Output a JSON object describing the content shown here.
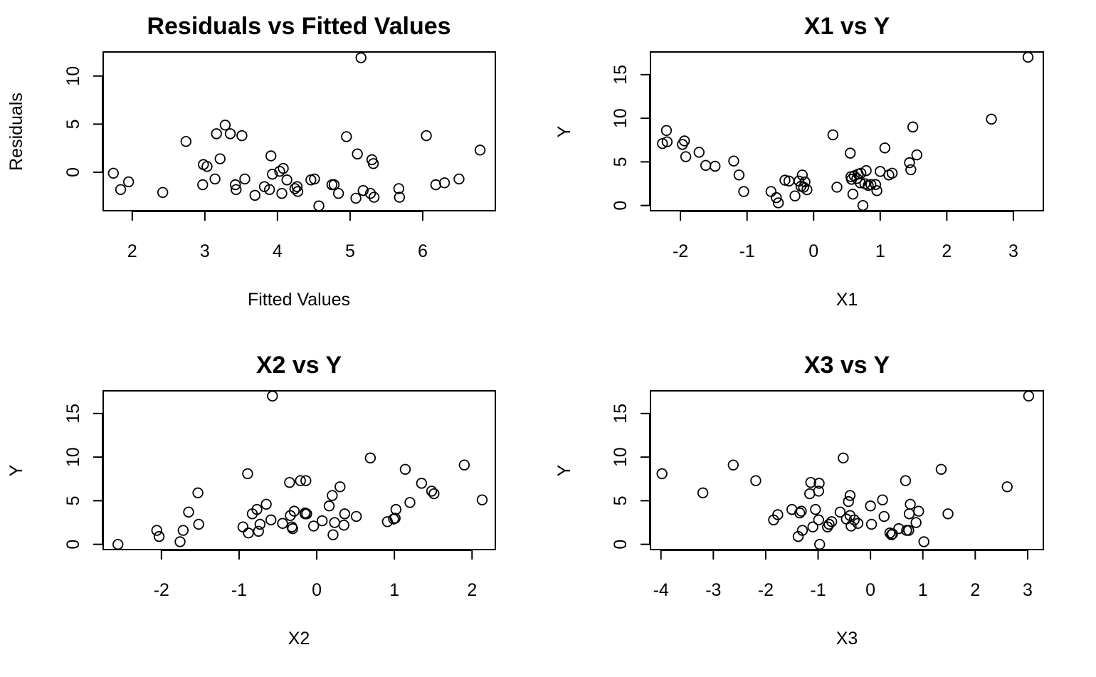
{
  "chart_data": [
    {
      "type": "scatter",
      "title": "Residuals vs Fitted Values",
      "xlabel": "Fitted Values",
      "ylabel": "Residuals",
      "xlim": [
        1.6,
        7.0
      ],
      "ylim": [
        -4.0,
        12.5
      ],
      "xticks": [
        2,
        3,
        4,
        5,
        6
      ],
      "yticks": [
        0,
        5,
        10
      ],
      "grid": false,
      "x": [
        1.74,
        1.84,
        1.95,
        2.42,
        2.74,
        2.97,
        2.98,
        3.03,
        3.14,
        3.16,
        3.21,
        3.28,
        3.35,
        3.42,
        3.43,
        3.51,
        3.55,
        3.69,
        3.82,
        3.89,
        3.91,
        3.93,
        4.03,
        4.06,
        4.08,
        4.13,
        4.24,
        4.27,
        4.28,
        4.46,
        4.51,
        4.57,
        4.75,
        4.78,
        4.84,
        4.95,
        5.08,
        5.1,
        5.15,
        5.18,
        5.28,
        5.3,
        5.32,
        5.33,
        5.67,
        5.68,
        6.05,
        6.18,
        6.3,
        6.5,
        6.79
      ],
      "y": [
        -0.1,
        -1.8,
        -1.0,
        -2.1,
        3.2,
        -1.3,
        0.8,
        0.6,
        -0.7,
        4.0,
        1.4,
        4.9,
        4.0,
        -1.3,
        -1.8,
        3.8,
        -0.7,
        -2.4,
        -1.5,
        -1.8,
        1.7,
        -0.2,
        0.1,
        -2.2,
        0.4,
        -0.8,
        -1.7,
        -1.5,
        -2.0,
        -0.8,
        -0.7,
        -3.5,
        -1.3,
        -1.3,
        -2.2,
        3.7,
        -2.7,
        1.9,
        11.9,
        -1.9,
        -2.2,
        1.3,
        0.9,
        -2.6,
        -1.7,
        -2.6,
        3.8,
        -1.3,
        -1.1,
        -0.7,
        2.3
      ]
    },
    {
      "type": "scatter",
      "title": "X1 vs Y",
      "xlabel": "X1",
      "ylabel": "Y",
      "xlim": [
        -2.45,
        3.45
      ],
      "ylim": [
        -0.6,
        17.6
      ],
      "xticks": [
        -2,
        -1,
        0,
        1,
        2,
        3
      ],
      "yticks": [
        0,
        5,
        10,
        15
      ],
      "grid": false,
      "x": [
        -2.27,
        -2.21,
        -2.2,
        -1.97,
        -1.94,
        -1.92,
        -1.72,
        -1.62,
        -1.48,
        -1.2,
        -1.12,
        -1.05,
        -0.64,
        -0.56,
        -0.53,
        -0.43,
        -0.37,
        -0.28,
        -0.22,
        -0.19,
        -0.17,
        -0.15,
        -0.13,
        -0.1,
        0.29,
        0.35,
        0.55,
        0.56,
        0.57,
        0.59,
        0.61,
        0.65,
        0.67,
        0.7,
        0.71,
        0.74,
        0.77,
        0.79,
        0.82,
        0.86,
        0.93,
        0.95,
        1.0,
        1.07,
        1.13,
        1.18,
        1.44,
        1.46,
        1.49,
        1.55,
        2.67,
        3.22
      ],
      "y": [
        7.1,
        8.6,
        7.3,
        7.0,
        7.4,
        5.6,
        6.1,
        4.6,
        4.5,
        5.1,
        3.5,
        1.6,
        1.6,
        0.9,
        0.3,
        2.9,
        2.8,
        1.1,
        2.8,
        2.2,
        3.5,
        2.1,
        2.7,
        1.8,
        8.1,
        2.1,
        6.0,
        3.3,
        3.0,
        1.3,
        3.4,
        3.1,
        3.6,
        2.6,
        3.7,
        0.0,
        2.5,
        4.0,
        2.3,
        2.4,
        2.4,
        1.7,
        3.9,
        6.6,
        3.5,
        3.7,
        4.9,
        4.1,
        9.0,
        5.8,
        9.9,
        17.0
      ]
    },
    {
      "type": "scatter",
      "title": "X2 vs Y",
      "xlabel": "X2",
      "ylabel": "Y",
      "xlim": [
        -2.75,
        2.3
      ],
      "ylim": [
        -0.6,
        17.6
      ],
      "xticks": [
        -2,
        -1,
        0,
        1,
        2
      ],
      "yticks": [
        0,
        5,
        10,
        15
      ],
      "grid": false,
      "x": [
        -2.56,
        -2.06,
        -2.03,
        -1.76,
        -1.72,
        -1.65,
        -1.53,
        -1.52,
        -0.95,
        -0.89,
        -0.88,
        -0.83,
        -0.77,
        -0.75,
        -0.73,
        -0.65,
        -0.59,
        -0.57,
        -0.44,
        -0.35,
        -0.34,
        -0.32,
        -0.31,
        -0.29,
        -0.21,
        -0.15,
        -0.15,
        -0.14,
        -0.13,
        -0.04,
        0.07,
        0.16,
        0.2,
        0.21,
        0.23,
        0.3,
        0.35,
        0.36,
        0.51,
        0.69,
        0.91,
        0.99,
        1.01,
        1.02,
        1.14,
        1.2,
        1.35,
        1.48,
        1.51,
        1.9,
        2.13
      ],
      "y": [
        0.0,
        1.6,
        0.9,
        0.3,
        1.6,
        3.7,
        5.9,
        2.3,
        2.0,
        8.1,
        1.3,
        3.5,
        4.0,
        1.5,
        2.3,
        4.6,
        2.8,
        17.0,
        2.4,
        7.1,
        3.3,
        2.0,
        1.8,
        3.8,
        7.3,
        3.5,
        3.6,
        7.3,
        3.5,
        2.1,
        2.7,
        4.4,
        5.6,
        1.1,
        2.5,
        6.6,
        2.2,
        3.5,
        3.2,
        9.9,
        2.6,
        2.9,
        3.0,
        4.0,
        8.6,
        4.8,
        7.0,
        6.1,
        5.8,
        9.1,
        5.1
      ]
    },
    {
      "type": "scatter",
      "title": "X3 vs Y",
      "xlabel": "X3",
      "ylabel": "Y",
      "xlim": [
        -4.2,
        3.3
      ],
      "ylim": [
        -0.6,
        17.6
      ],
      "xticks": [
        -4,
        -3,
        -2,
        -1,
        0,
        1,
        2,
        3
      ],
      "yticks": [
        0,
        5,
        10,
        15
      ],
      "grid": false,
      "x": [
        -3.98,
        -3.2,
        -2.62,
        -2.19,
        -1.85,
        -1.77,
        -1.5,
        -1.38,
        -1.35,
        -1.32,
        -1.3,
        -1.16,
        -1.14,
        -1.1,
        -1.05,
        -0.99,
        -0.99,
        -0.98,
        -0.97,
        -0.82,
        -0.79,
        -0.74,
        -0.58,
        -0.52,
        -0.46,
        -0.42,
        -0.39,
        -0.39,
        -0.37,
        -0.31,
        -0.24,
        0.0,
        0.02,
        0.23,
        0.26,
        0.37,
        0.4,
        0.42,
        0.54,
        0.67,
        0.69,
        0.73,
        0.74,
        0.76,
        0.87,
        0.92,
        1.02,
        1.35,
        1.48,
        2.61,
        3.02
      ],
      "y": [
        8.1,
        5.9,
        9.1,
        7.3,
        2.8,
        3.4,
        4.0,
        0.9,
        3.6,
        3.8,
        1.6,
        5.8,
        7.1,
        2.0,
        4.0,
        2.8,
        6.1,
        7.0,
        0.0,
        2.0,
        2.3,
        2.6,
        3.7,
        9.9,
        2.9,
        4.9,
        3.3,
        5.6,
        2.1,
        2.8,
        2.4,
        4.4,
        2.3,
        5.1,
        3.2,
        1.3,
        1.1,
        1.2,
        1.8,
        7.3,
        1.6,
        1.6,
        3.5,
        4.6,
        2.5,
        3.8,
        0.3,
        8.6,
        3.5,
        6.6,
        17.0
      ]
    }
  ]
}
